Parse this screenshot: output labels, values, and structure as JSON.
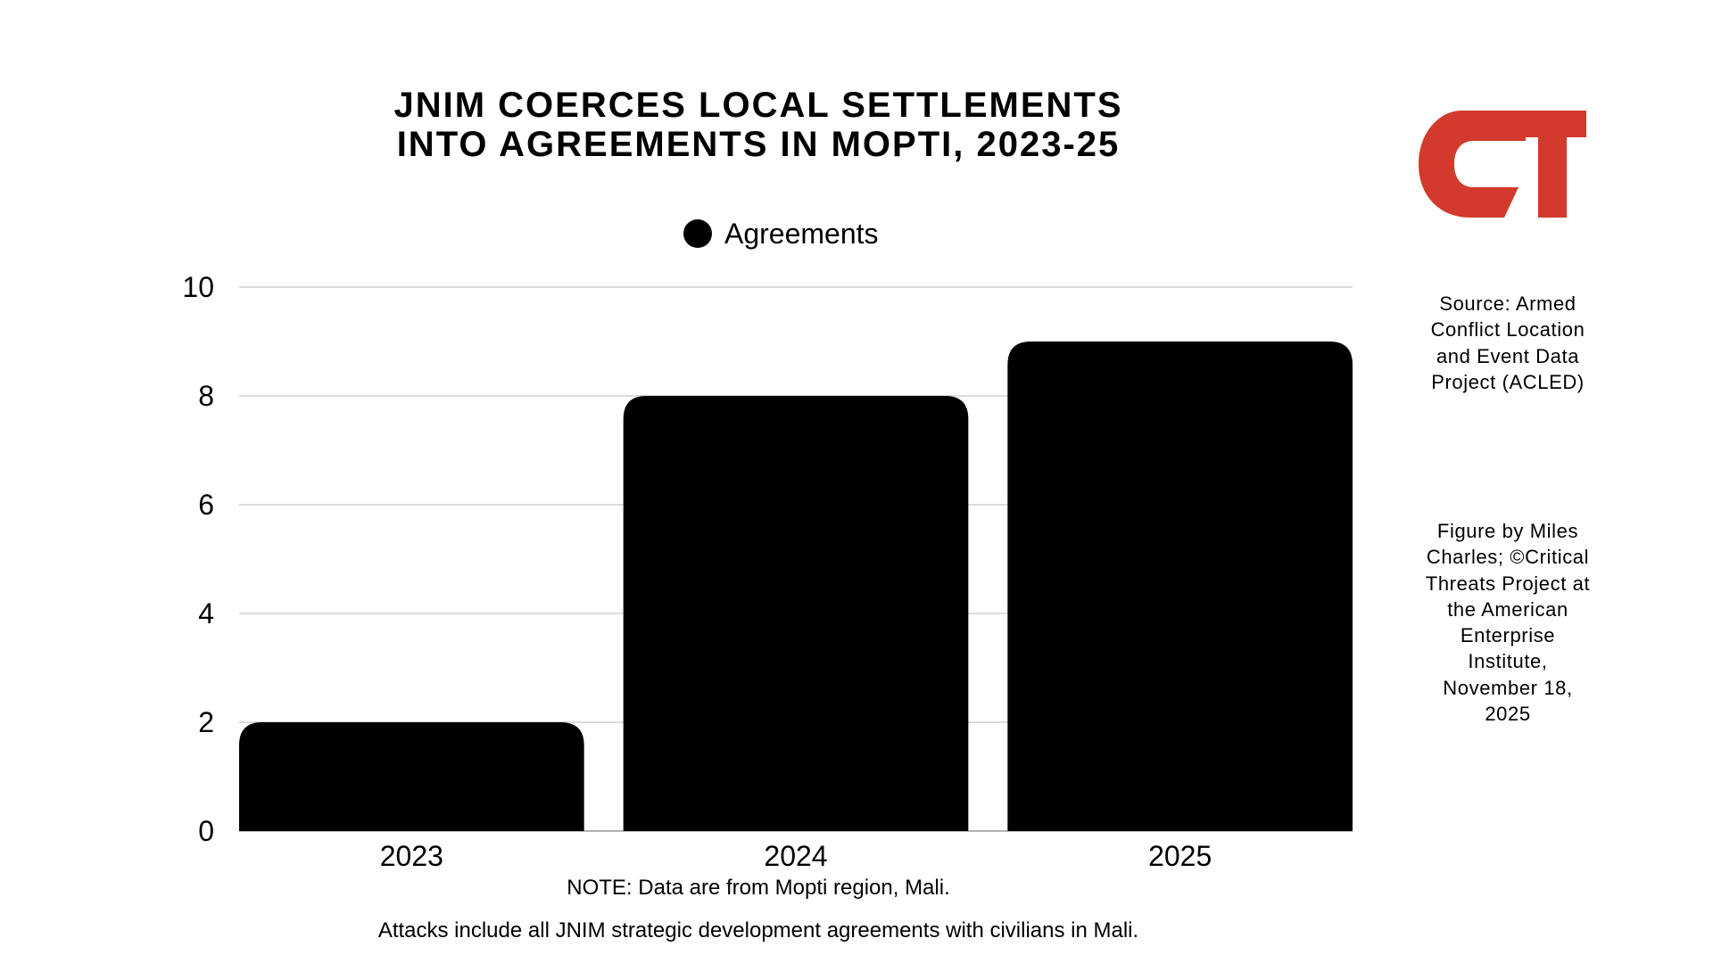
{
  "title_lines": [
    "JNIM COERCES LOCAL SETTLEMENTS",
    "INTO AGREEMENTS IN MOPTI, 2023-25"
  ],
  "legend_label": "Agreements",
  "source_text": "Source: Armed Conflict Location and Event Data Project (ACLED)",
  "credit_text": "Figure by Miles Charles; ©Critical Threats Project at the American Enterprise Institute, November 18, 2025",
  "note_lines": [
    "NOTE: Data are from Mopti region, Mali.",
    "Attacks include all JNIM strategic development agreements with civilians in Mali."
  ],
  "logo": {
    "text": "CT",
    "color": "#d23a2b"
  },
  "chart_data": {
    "type": "bar",
    "title": "JNIM COERCES LOCAL SETTLEMENTS INTO AGREEMENTS IN MOPTI, 2023-25",
    "categories": [
      "2023",
      "2024",
      "2025"
    ],
    "series": [
      {
        "name": "Agreements",
        "values": [
          2,
          8,
          9
        ],
        "color": "#000000"
      }
    ],
    "ylim": [
      0,
      10
    ],
    "yticks": [
      0,
      2,
      4,
      6,
      8,
      10
    ],
    "xlabel": "",
    "ylabel": "",
    "grid": true,
    "legend_position": "top-center"
  }
}
